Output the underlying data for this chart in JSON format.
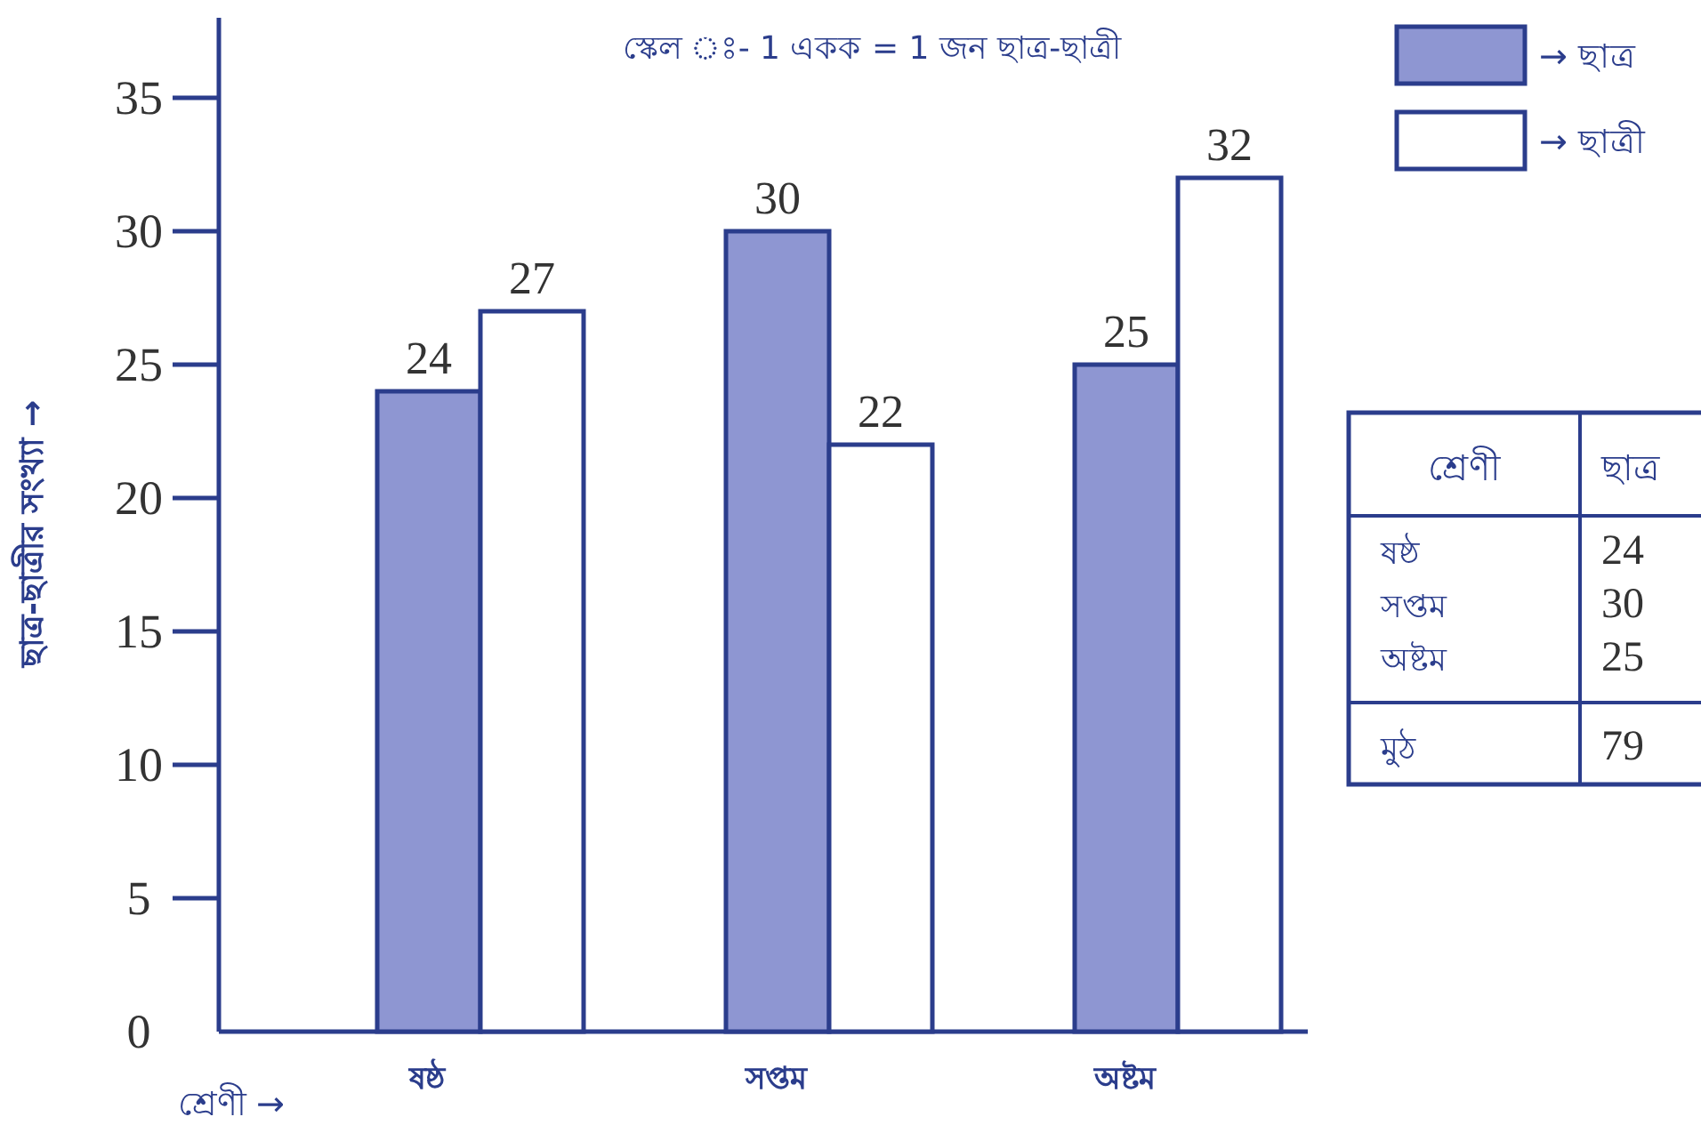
{
  "chart_data": {
    "type": "bar",
    "xlabel": "শ্রেণী →",
    "ylabel": "ছাত্র-ছাত্রীর সংখ্যা →",
    "categories": [
      "ষষ্ঠ",
      "সপ্তম",
      "অষ্টম"
    ],
    "series": [
      {
        "name": "→ ছাত্র",
        "color": "#8e96d2",
        "values": [
          24,
          30,
          25
        ]
      },
      {
        "name": "→ ছাত্রী",
        "color": "#ffffff",
        "values": [
          27,
          22,
          32
        ]
      }
    ],
    "ylim": [
      0,
      38
    ],
    "yticks": [
      0,
      5,
      10,
      15,
      20,
      25,
      30,
      35
    ],
    "data_labels": true,
    "legend": "top right",
    "annotations": [
      "স্কেল ঃ- 1 একক = 1 জন ছাত্র-ছাত্রী",
      "মুঠ",
      "79",
      "শ্রেণী",
      "ছাত্র",
      "24",
      "30",
      "25"
    ]
  }
}
